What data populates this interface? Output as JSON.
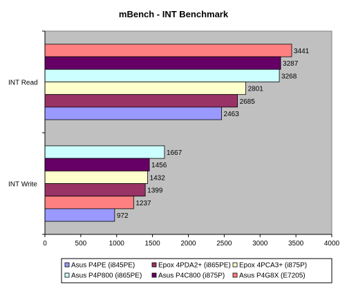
{
  "chart_data": {
    "type": "bar",
    "orientation": "horizontal",
    "title": "mBench - INT Benchmark",
    "xlabel": "",
    "ylabel": "",
    "xlim": [
      0,
      4000
    ],
    "x_ticks": [
      "0",
      "500",
      "1000",
      "1500",
      "2000",
      "2500",
      "3000",
      "3500",
      "4000"
    ],
    "grid": false,
    "plot_background": "#c0c0c0",
    "legend_position": "bottom",
    "categories": [
      {
        "label": "INT Read",
        "bars": [
          {
            "series": "Asus P4G8X (E7205)",
            "value": 3441
          },
          {
            "series": "Asus P4C800 (i875P)",
            "value": 3287
          },
          {
            "series": "Asus P4P800 (i865PE)",
            "value": 3268
          },
          {
            "series": "Epox 4PCA3+ (i875P)",
            "value": 2801
          },
          {
            "series": "Epox 4PDA2+ (i865PE)",
            "value": 2685
          },
          {
            "series": "Asus P4PE (i845PE)",
            "value": 2463
          }
        ]
      },
      {
        "label": "INT Write",
        "bars": [
          {
            "series": "Asus P4P800 (i865PE)",
            "value": 1667
          },
          {
            "series": "Asus P4C800 (i875P)",
            "value": 1456
          },
          {
            "series": "Epox 4PCA3+ (i875P)",
            "value": 1432
          },
          {
            "series": "Epox 4PDA2+ (i865PE)",
            "value": 1399
          },
          {
            "series": "Asus P4G8X (E7205)",
            "value": 1237
          },
          {
            "series": "Asus P4PE (i845PE)",
            "value": 972
          }
        ]
      }
    ],
    "series": [
      {
        "name": "Asus P4PE (i845PE)",
        "color": "#9999ff"
      },
      {
        "name": "Epox 4PDA2+ (i865PE)",
        "color": "#993366"
      },
      {
        "name": "Epox 4PCA3+ (i875P)",
        "color": "#ffffcc"
      },
      {
        "name": "Asus P4P800 (i865PE)",
        "color": "#ccffff"
      },
      {
        "name": "Asus P4C800 (i875P)",
        "color": "#660066"
      },
      {
        "name": "Asus P4G8X (E7205)",
        "color": "#ff8080"
      }
    ]
  }
}
